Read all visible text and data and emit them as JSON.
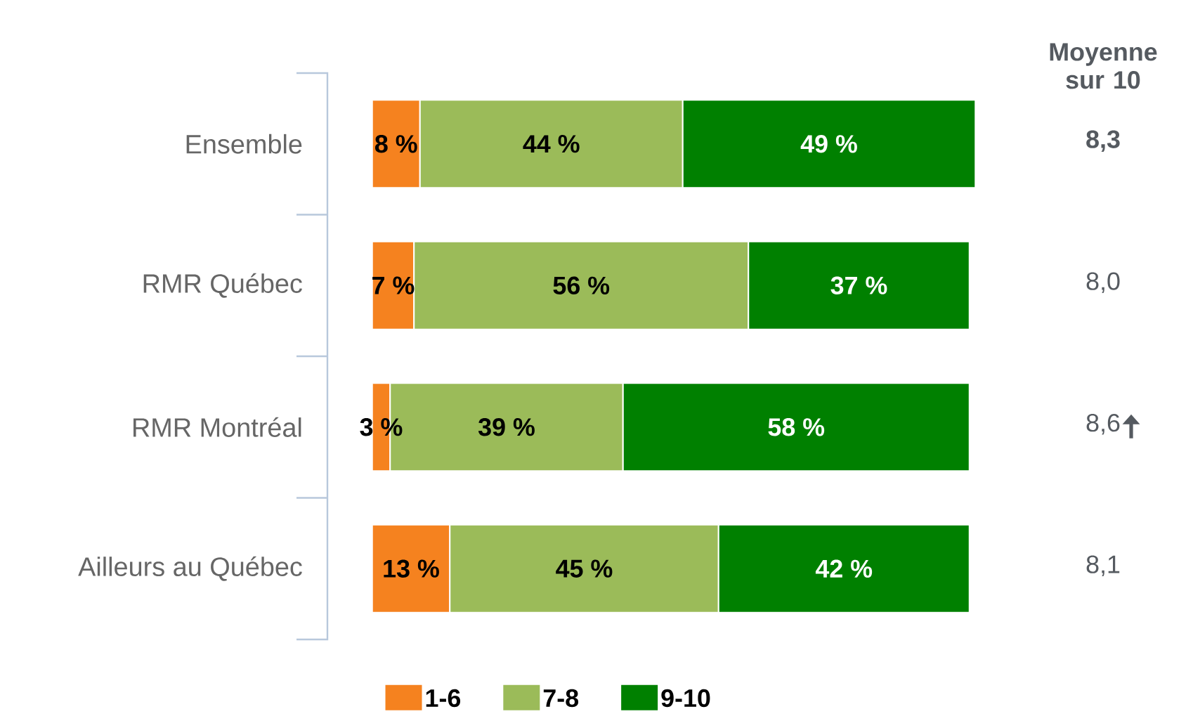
{
  "chart_data": {
    "type": "bar",
    "orientation": "horizontal",
    "stacked": true,
    "categories": [
      "Ensemble",
      "RMR Québec",
      "RMR Montréal",
      "Ailleurs au Québec"
    ],
    "series": [
      {
        "name": "1-6",
        "color": "#f5821f",
        "values": [
          8,
          7,
          3,
          13
        ],
        "value_labels": [
          "8 %",
          "7 %",
          "3 %",
          "13 %"
        ]
      },
      {
        "name": "7-8",
        "color": "#9bbb59",
        "values": [
          44,
          56,
          39,
          45
        ],
        "value_labels": [
          "44 %",
          "56 %",
          "39 %",
          "45 %"
        ]
      },
      {
        "name": "9-10",
        "color": "#008000",
        "values": [
          49,
          37,
          58,
          42
        ],
        "value_labels": [
          "49 %",
          "37 %",
          "58 %",
          "42 %"
        ]
      }
    ],
    "legend": "bottom",
    "annotations": [
      "Moyenne sur 10",
      "8,3",
      "8,0",
      "8,6",
      "8,1"
    ]
  }
}
